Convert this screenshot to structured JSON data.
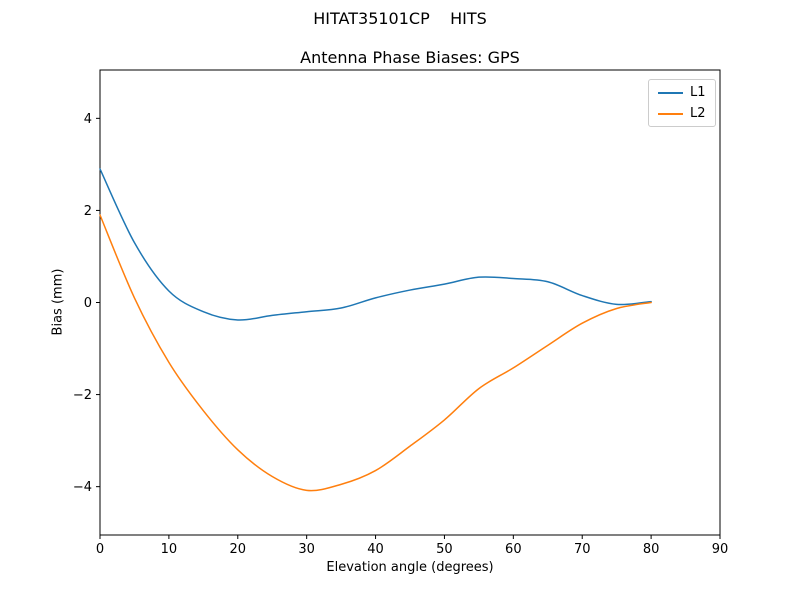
{
  "chart_data": {
    "type": "line",
    "suptitle": "HITAT35101CP    HITS",
    "title": "Antenna Phase Biases: GPS",
    "xlabel": "Elevation angle (degrees)",
    "ylabel": "Bias (mm)",
    "xlim": [
      0,
      90
    ],
    "ylim": [
      -5.05,
      5.05
    ],
    "xticks": [
      0,
      10,
      20,
      30,
      40,
      50,
      60,
      70,
      80,
      90
    ],
    "yticks": [
      -4,
      -2,
      0,
      2,
      4
    ],
    "grid": false,
    "legend_position": "upper right",
    "x": [
      0,
      5,
      10,
      15,
      20,
      25,
      30,
      35,
      40,
      45,
      50,
      55,
      60,
      65,
      70,
      75,
      80
    ],
    "series": [
      {
        "name": "L1",
        "color": "#1f77b4",
        "values": [
          2.9,
          1.3,
          0.25,
          -0.2,
          -0.38,
          -0.28,
          -0.2,
          -0.12,
          0.1,
          0.27,
          0.4,
          0.55,
          0.52,
          0.45,
          0.15,
          -0.04,
          0.02
        ]
      },
      {
        "name": "L2",
        "color": "#ff7f0e",
        "values": [
          1.9,
          0.1,
          -1.3,
          -2.35,
          -3.2,
          -3.78,
          -4.08,
          -3.95,
          -3.65,
          -3.12,
          -2.55,
          -1.87,
          -1.42,
          -0.93,
          -0.45,
          -0.13,
          0.0
        ]
      }
    ]
  }
}
